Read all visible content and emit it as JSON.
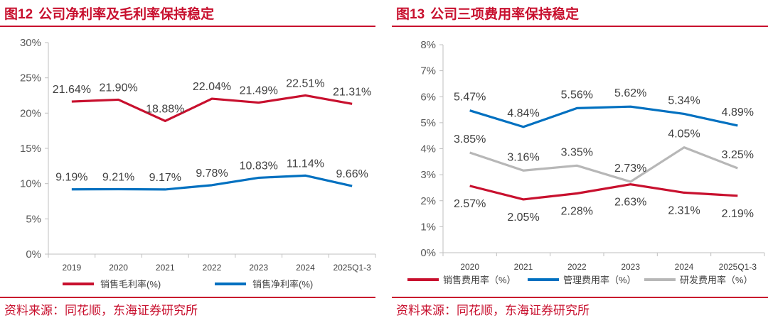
{
  "left": {
    "figure_no": "图12",
    "title": "公司净利率及毛利率保持稳定",
    "source": "资料来源：同花顺，东海证券研究所"
  },
  "right": {
    "figure_no": "图13",
    "title": "公司三项费用率保持稳定",
    "source": "资料来源：同花顺，东海证券研究所"
  },
  "colors": {
    "red": "#c8102e",
    "blue": "#0070c0",
    "gray": "#b7b7b7",
    "axis_text": "#595959",
    "accent": "#c8102e"
  },
  "chart_data": [
    {
      "type": "line",
      "title": "公司净利率及毛利率保持稳定",
      "categories": [
        "2019",
        "2020",
        "2021",
        "2022",
        "2023",
        "2024",
        "2025Q1-3"
      ],
      "ylim": [
        0,
        30
      ],
      "yticks": [
        "0%",
        "5%",
        "10%",
        "15%",
        "20%",
        "25%",
        "30%"
      ],
      "series": [
        {
          "name": "销售毛利率(%)",
          "color": "#c8102e",
          "label_pos": "above",
          "values": [
            21.64,
            21.9,
            18.88,
            22.04,
            21.49,
            22.51,
            21.31
          ],
          "labels": [
            "21.64%",
            "21.90%",
            "18.88%",
            "22.04%",
            "21.49%",
            "22.51%",
            "21.31%"
          ]
        },
        {
          "name": "销售净利率(%)",
          "color": "#0070c0",
          "label_pos": "above",
          "values": [
            9.19,
            9.21,
            9.17,
            9.78,
            10.83,
            11.14,
            9.66
          ],
          "labels": [
            "9.19%",
            "9.21%",
            "9.17%",
            "9.78%",
            "10.83%",
            "11.14%",
            "9.66%"
          ]
        }
      ],
      "legend": "bottom"
    },
    {
      "type": "line",
      "title": "公司三项费用率保持稳定",
      "categories": [
        "2020",
        "2021",
        "2022",
        "2023",
        "2024",
        "2025Q1-3"
      ],
      "ylim": [
        0,
        8
      ],
      "yticks": [
        "0%",
        "1%",
        "2%",
        "3%",
        "4%",
        "5%",
        "6%",
        "7%",
        "8%"
      ],
      "series": [
        {
          "name": "销售费用率（%）",
          "color": "#c8102e",
          "label_pos": "below",
          "values": [
            2.57,
            2.05,
            2.28,
            2.63,
            2.31,
            2.19
          ],
          "labels": [
            "2.57%",
            "2.05%",
            "2.28%",
            "2.63%",
            "2.31%",
            "2.19%"
          ]
        },
        {
          "name": "管理费用率（%）",
          "color": "#0070c0",
          "label_pos": "above",
          "values": [
            5.47,
            4.84,
            5.56,
            5.62,
            5.34,
            4.89
          ],
          "labels": [
            "5.47%",
            "4.84%",
            "5.56%",
            "5.62%",
            "5.34%",
            "4.89%"
          ]
        },
        {
          "name": "研发费用率（%）",
          "color": "#b7b7b7",
          "label_pos": "above",
          "values": [
            3.85,
            3.16,
            3.35,
            2.73,
            4.05,
            3.25
          ],
          "labels": [
            "3.85%",
            "3.16%",
            "3.35%",
            "2.73%",
            "4.05%",
            "3.25%"
          ]
        }
      ],
      "legend": "bottom"
    }
  ]
}
